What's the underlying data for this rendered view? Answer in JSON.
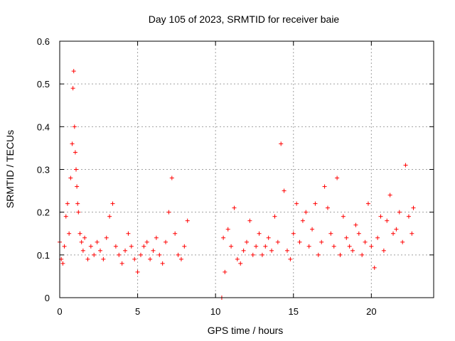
{
  "chart_data": {
    "type": "scatter",
    "title": "Day 105 of 2023, SRMTID for receiver baie",
    "xlabel": "GPS time / hours",
    "ylabel": "SRMTID / TECUs",
    "xlim": [
      0,
      24
    ],
    "ylim": [
      0,
      0.6
    ],
    "x_ticks": [
      0,
      5,
      10,
      15,
      20
    ],
    "x_tick_labels": [
      "0",
      "5",
      "10",
      "15",
      "20"
    ],
    "y_ticks": [
      0,
      0.1,
      0.2,
      0.3,
      0.4,
      0.5,
      0.6
    ],
    "y_tick_labels": [
      "0",
      "0.1",
      "0.2",
      "0.3",
      "0.4",
      "0.5",
      "0.6"
    ],
    "grid": true,
    "marker": "+",
    "series": [
      {
        "name": "SRMTID",
        "color": "#ff0000",
        "x": [
          0.0,
          0.1,
          0.2,
          0.3,
          0.4,
          0.5,
          0.6,
          0.7,
          0.8,
          0.85,
          0.9,
          0.95,
          1.0,
          1.05,
          1.1,
          1.15,
          1.2,
          1.3,
          1.4,
          1.5,
          1.6,
          1.8,
          2.0,
          2.2,
          2.4,
          2.6,
          2.8,
          3.0,
          3.2,
          3.4,
          3.6,
          3.8,
          4.0,
          4.2,
          4.4,
          4.6,
          4.8,
          5.0,
          5.2,
          5.4,
          5.6,
          5.8,
          6.0,
          6.2,
          6.4,
          6.6,
          6.8,
          7.0,
          7.2,
          7.4,
          7.6,
          7.8,
          8.0,
          8.2,
          10.4,
          10.5,
          10.6,
          10.8,
          11.0,
          11.2,
          11.4,
          11.6,
          11.8,
          12.0,
          12.2,
          12.4,
          12.6,
          12.8,
          13.0,
          13.2,
          13.4,
          13.6,
          13.8,
          14.0,
          14.2,
          14.4,
          14.6,
          14.8,
          15.0,
          15.2,
          15.4,
          15.6,
          15.8,
          16.0,
          16.2,
          16.4,
          16.6,
          16.8,
          17.0,
          17.2,
          17.4,
          17.6,
          17.8,
          18.0,
          18.2,
          18.4,
          18.6,
          18.8,
          19.0,
          19.2,
          19.4,
          19.6,
          19.8,
          20.0,
          20.2,
          20.4,
          20.6,
          20.8,
          21.0,
          21.2,
          21.4,
          21.6,
          21.8,
          22.0,
          22.2,
          22.4,
          22.6,
          22.7
        ],
        "y": [
          0.13,
          0.09,
          0.08,
          0.12,
          0.19,
          0.22,
          0.15,
          0.28,
          0.36,
          0.49,
          0.53,
          0.4,
          0.34,
          0.3,
          0.26,
          0.22,
          0.2,
          0.15,
          0.13,
          0.11,
          0.14,
          0.09,
          0.12,
          0.1,
          0.13,
          0.11,
          0.09,
          0.14,
          0.19,
          0.22,
          0.12,
          0.1,
          0.08,
          0.11,
          0.15,
          0.12,
          0.09,
          0.06,
          0.1,
          0.12,
          0.13,
          0.09,
          0.11,
          0.14,
          0.1,
          0.08,
          0.13,
          0.2,
          0.28,
          0.15,
          0.1,
          0.09,
          0.12,
          0.18,
          0.0,
          0.14,
          0.06,
          0.16,
          0.12,
          0.21,
          0.09,
          0.08,
          0.11,
          0.13,
          0.18,
          0.1,
          0.12,
          0.15,
          0.1,
          0.12,
          0.14,
          0.11,
          0.19,
          0.13,
          0.36,
          0.25,
          0.11,
          0.09,
          0.15,
          0.22,
          0.13,
          0.18,
          0.2,
          0.12,
          0.16,
          0.22,
          0.1,
          0.13,
          0.26,
          0.21,
          0.15,
          0.12,
          0.28,
          0.1,
          0.19,
          0.14,
          0.12,
          0.11,
          0.17,
          0.15,
          0.1,
          0.13,
          0.22,
          0.12,
          0.07,
          0.14,
          0.19,
          0.11,
          0.18,
          0.24,
          0.15,
          0.16,
          0.2,
          0.13,
          0.31,
          0.19,
          0.15,
          0.21
        ]
      }
    ]
  }
}
